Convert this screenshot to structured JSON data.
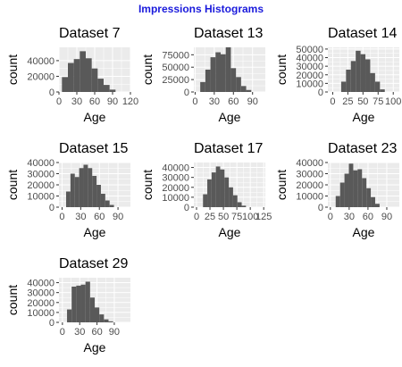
{
  "title": "Impressions Histograms",
  "colors": {
    "title": "#1a1adc",
    "panel_bg": "#ebebeb",
    "grid_major": "#ffffff",
    "bar": "#595959",
    "tick_text": "#4d4d4d"
  },
  "chart_data": [
    {
      "type": "bar",
      "title": "Dataset 7",
      "xlabel": "Age",
      "ylabel": "count",
      "xlim": [
        0,
        120
      ],
      "ylim": [
        0,
        57000
      ],
      "x_ticks": [
        0,
        30,
        60,
        90,
        120
      ],
      "x_tick_labels": [
        "0",
        "30",
        "60",
        "90",
        "120"
      ],
      "y_ticks": [
        0,
        20000,
        40000
      ],
      "y_tick_labels": [
        "0",
        "20000",
        "40000"
      ],
      "bin_width": 10,
      "bins": [
        10,
        20,
        30,
        40,
        50,
        60,
        70,
        80,
        90
      ],
      "values": [
        19000,
        37000,
        42000,
        52000,
        43000,
        30000,
        17000,
        9000,
        3000
      ],
      "grid": true
    },
    {
      "type": "bar",
      "title": "Dataset 13",
      "xlabel": "Age",
      "ylabel": "count",
      "xlim": [
        -2,
        110
      ],
      "ylim": [
        0,
        90000
      ],
      "x_ticks": [
        0,
        30,
        60,
        90
      ],
      "x_tick_labels": [
        "0",
        "30",
        "60",
        "90"
      ],
      "y_ticks": [
        0,
        25000,
        50000,
        75000
      ],
      "y_tick_labels": [
        "0",
        "25000",
        "50000",
        "75000"
      ],
      "bin_width": 8,
      "bins": [
        12,
        20,
        28,
        36,
        44,
        52,
        60,
        68,
        76,
        84
      ],
      "values": [
        20000,
        45000,
        70000,
        80000,
        76000,
        90000,
        48000,
        30000,
        12000,
        4000
      ],
      "grid": true
    },
    {
      "type": "bar",
      "title": "Dataset 14",
      "xlabel": "Age",
      "ylabel": "count",
      "xlim": [
        -8,
        110
      ],
      "ylim": [
        0,
        52000
      ],
      "x_ticks": [
        0,
        25,
        50,
        75,
        100
      ],
      "x_tick_labels": [
        "0",
        "25",
        "50",
        "75",
        "100"
      ],
      "y_ticks": [
        0,
        10000,
        20000,
        30000,
        40000,
        50000
      ],
      "y_tick_labels": [
        "0",
        "10000",
        "20000",
        "30000",
        "40000",
        "50000"
      ],
      "bin_width": 8,
      "bins": [
        18,
        26,
        34,
        42,
        50,
        58,
        66,
        74,
        82
      ],
      "values": [
        12000,
        26000,
        36000,
        48000,
        44000,
        38000,
        22000,
        12000,
        3000
      ],
      "grid": true
    },
    {
      "type": "bar",
      "title": "Dataset 15",
      "xlabel": "Age",
      "ylabel": "count",
      "xlim": [
        -5,
        110
      ],
      "ylim": [
        0,
        40000
      ],
      "x_ticks": [
        0,
        30,
        60,
        90
      ],
      "x_tick_labels": [
        "0",
        "30",
        "60",
        "90"
      ],
      "y_ticks": [
        0,
        10000,
        20000,
        30000,
        40000
      ],
      "y_tick_labels": [
        "0",
        "10000",
        "20000",
        "30000",
        "40000"
      ],
      "bin_width": 7,
      "bins": [
        10,
        17,
        24,
        31,
        38,
        45,
        52,
        59,
        66,
        73,
        80
      ],
      "values": [
        14000,
        30000,
        27000,
        35000,
        38000,
        35000,
        28000,
        20000,
        12000,
        6000,
        2000
      ],
      "grid": true
    },
    {
      "type": "bar",
      "title": "Dataset 17",
      "xlabel": "Age",
      "ylabel": "count",
      "xlim": [
        -5,
        128
      ],
      "ylim": [
        0,
        45000
      ],
      "x_ticks": [
        0,
        25,
        50,
        75,
        100,
        125
      ],
      "x_tick_labels": [
        "0",
        "25",
        "50",
        "75",
        "100",
        "125"
      ],
      "y_ticks": [
        0,
        10000,
        20000,
        30000,
        40000
      ],
      "y_tick_labels": [
        "0",
        "10000",
        "20000",
        "30000",
        "40000"
      ],
      "bin_width": 8,
      "bins": [
        16,
        24,
        32,
        40,
        48,
        56,
        64,
        72,
        80,
        88
      ],
      "values": [
        13000,
        28000,
        35000,
        41000,
        38000,
        30000,
        20000,
        12000,
        5000,
        1500
      ],
      "grid": true
    },
    {
      "type": "bar",
      "title": "Dataset 23",
      "xlabel": "Age",
      "ylabel": "count",
      "xlim": [
        -4,
        110
      ],
      "ylim": [
        0,
        40000
      ],
      "x_ticks": [
        0,
        30,
        60,
        90
      ],
      "x_tick_labels": [
        "0",
        "30",
        "60",
        "90"
      ],
      "y_ticks": [
        0,
        10000,
        20000,
        30000,
        40000
      ],
      "y_tick_labels": [
        "0",
        "10000",
        "20000",
        "30000",
        "40000"
      ],
      "bin_width": 7,
      "bins": [
        12,
        19,
        26,
        33,
        40,
        47,
        54,
        61,
        68,
        75
      ],
      "values": [
        10000,
        22000,
        30000,
        39000,
        33000,
        34000,
        26000,
        17000,
        9000,
        3000
      ],
      "grid": true
    },
    {
      "type": "bar",
      "title": "Dataset 29",
      "xlabel": "Age",
      "ylabel": "count",
      "xlim": [
        -6,
        118
      ],
      "ylim": [
        0,
        45000
      ],
      "x_ticks": [
        0,
        30,
        60,
        90
      ],
      "x_tick_labels": [
        "0",
        "30",
        "60",
        "90"
      ],
      "y_ticks": [
        0,
        10000,
        20000,
        30000,
        40000
      ],
      "y_tick_labels": [
        "0",
        "10000",
        "20000",
        "30000",
        "40000"
      ],
      "bin_width": 8,
      "bins": [
        12,
        20,
        28,
        36,
        44,
        52,
        60,
        68,
        76,
        84
      ],
      "values": [
        13000,
        36000,
        37000,
        38000,
        41000,
        25000,
        15000,
        8000,
        3000,
        1000
      ],
      "grid": true
    }
  ]
}
